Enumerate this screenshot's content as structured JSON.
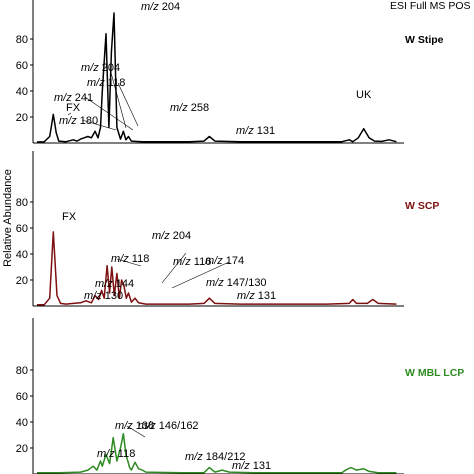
{
  "chart_data": {
    "type": "line",
    "scan_mode": "ESI Full MS POS",
    "ylabel": "Relative Abundance",
    "yticks": [
      20,
      40,
      60,
      80
    ],
    "ylim": [
      0,
      100
    ],
    "panels": [
      {
        "title": "W Stipe",
        "color": "#000000",
        "title_color": "#000000",
        "points": [
          [
            0,
            0.8
          ],
          [
            2,
            1
          ],
          [
            3.5,
            5
          ],
          [
            4.5,
            22
          ],
          [
            5.3,
            8
          ],
          [
            6,
            1.5
          ],
          [
            8,
            1
          ],
          [
            10,
            2.5
          ],
          [
            11,
            1.5
          ],
          [
            12,
            3
          ],
          [
            13,
            4
          ],
          [
            14,
            5
          ],
          [
            15,
            4
          ],
          [
            16,
            9
          ],
          [
            16.8,
            4
          ],
          [
            17.5,
            12
          ],
          [
            18,
            40
          ],
          [
            19,
            84
          ],
          [
            19.8,
            12
          ],
          [
            20.5,
            70
          ],
          [
            21.2,
            100
          ],
          [
            22,
            12
          ],
          [
            23,
            3
          ],
          [
            23.8,
            9
          ],
          [
            24.5,
            2.5
          ],
          [
            25.2,
            5
          ],
          [
            26,
            1.5
          ],
          [
            29,
            1
          ],
          [
            35,
            1
          ],
          [
            42,
            1
          ],
          [
            46,
            1.5
          ],
          [
            47.5,
            5
          ],
          [
            49,
            1.5
          ],
          [
            56,
            1
          ],
          [
            68,
            1
          ],
          [
            84,
            1
          ],
          [
            86,
            2.5
          ],
          [
            87,
            1
          ],
          [
            88.5,
            4
          ],
          [
            90,
            11
          ],
          [
            91.5,
            4
          ],
          [
            93,
            1.5
          ],
          [
            95,
            1.2
          ],
          [
            97,
            2.5
          ],
          [
            99,
            1
          ]
        ],
        "labels": [
          {
            "text": "FX",
            "x": 4.5
          },
          {
            "text": "m/z 180",
            "x": 7.5
          },
          {
            "text": "m/z 241",
            "x": 10
          },
          {
            "text": "m/z 204",
            "x": 13
          },
          {
            "text": "m/z 118",
            "x": 15
          },
          {
            "text": "m/z 204",
            "x": 21
          },
          {
            "text": "m/z 258",
            "x": 24.5
          },
          {
            "text": "m/z 131",
            "x": 57
          },
          {
            "text": "UK",
            "x": 88
          }
        ]
      },
      {
        "title": "W SCP",
        "color": "#7d1010",
        "title_color": "#7d1010",
        "points": [
          [
            0,
            1
          ],
          [
            2,
            1
          ],
          [
            3.5,
            6
          ],
          [
            4.5,
            57
          ],
          [
            5.5,
            8
          ],
          [
            6.5,
            2
          ],
          [
            8,
            1.5
          ],
          [
            10,
            2
          ],
          [
            12,
            2.5
          ],
          [
            13.5,
            4
          ],
          [
            15,
            2.5
          ],
          [
            16,
            8
          ],
          [
            17,
            5
          ],
          [
            17.8,
            12
          ],
          [
            18.5,
            6
          ],
          [
            19.3,
            31
          ],
          [
            20,
            10
          ],
          [
            20.6,
            30
          ],
          [
            21.3,
            8
          ],
          [
            22,
            25
          ],
          [
            22.7,
            6
          ],
          [
            23.3,
            20
          ],
          [
            24,
            15
          ],
          [
            24.6,
            6
          ],
          [
            25.2,
            10
          ],
          [
            26,
            3
          ],
          [
            27,
            6
          ],
          [
            28,
            2.5
          ],
          [
            30,
            1.5
          ],
          [
            35,
            1.5
          ],
          [
            42,
            1.5
          ],
          [
            46,
            2
          ],
          [
            47.5,
            6
          ],
          [
            49,
            2
          ],
          [
            56,
            1.5
          ],
          [
            68,
            1.5
          ],
          [
            80,
            1.5
          ],
          [
            86,
            2
          ],
          [
            87,
            5
          ],
          [
            88,
            2
          ],
          [
            91,
            2
          ],
          [
            92.5,
            5
          ],
          [
            94,
            2
          ],
          [
            99,
            1.5
          ]
        ],
        "labels": [
          {
            "text": "FX",
            "x": 4.5
          },
          {
            "text": "m/z 130",
            "x": 13
          },
          {
            "text": "m/z 144",
            "x": 17
          },
          {
            "text": "m/z 118",
            "x": 19.3
          },
          {
            "text": "m/z 204",
            "x": 21.5
          },
          {
            "text": "m/z 116",
            "x": 23
          },
          {
            "text": "m/z 174",
            "x": 24.5
          },
          {
            "text": "m/z 147/130",
            "x": 27
          },
          {
            "text": "m/z 131",
            "x": 57
          }
        ]
      },
      {
        "title": "W MBL LCP",
        "color": "#2e8b22",
        "title_color": "#2e8b22",
        "points": [
          [
            0,
            1
          ],
          [
            6,
            1
          ],
          [
            12,
            1.5
          ],
          [
            14,
            3
          ],
          [
            15.5,
            6
          ],
          [
            16.5,
            3
          ],
          [
            17.5,
            10
          ],
          [
            18,
            6
          ],
          [
            19,
            15
          ],
          [
            20,
            8
          ],
          [
            21,
            28
          ],
          [
            22,
            10
          ],
          [
            23,
            20
          ],
          [
            23.8,
            31
          ],
          [
            24.5,
            15
          ],
          [
            25,
            10
          ],
          [
            25.5,
            5
          ],
          [
            26,
            3
          ],
          [
            27,
            9
          ],
          [
            28,
            4
          ],
          [
            29,
            3
          ],
          [
            30,
            1.5
          ],
          [
            40,
            1
          ],
          [
            46,
            1
          ],
          [
            47.5,
            5
          ],
          [
            49,
            1.5
          ],
          [
            51,
            3
          ],
          [
            53,
            1.5
          ],
          [
            60,
            1
          ],
          [
            78,
            1
          ],
          [
            84,
            1
          ],
          [
            85,
            3
          ],
          [
            86.5,
            5
          ],
          [
            88,
            3
          ],
          [
            90,
            4
          ],
          [
            91.5,
            2
          ],
          [
            94,
            1
          ],
          [
            99,
            1
          ]
        ],
        "labels": [
          {
            "text": "m/z 118",
            "x": 17.5
          },
          {
            "text": "m/z 138",
            "x": 20
          },
          {
            "text": "m/z 146/162",
            "x": 23.8
          },
          {
            "text": "m/z 184/212",
            "x": 27
          },
          {
            "text": "m/z 131",
            "x": 48
          }
        ]
      }
    ]
  }
}
